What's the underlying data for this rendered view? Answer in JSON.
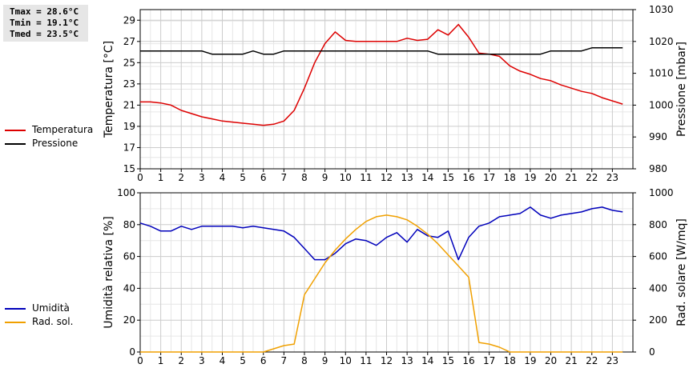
{
  "stats": {
    "tmax": "Tmax = 28.6°C",
    "tmin": "Tmin = 19.1°C",
    "tmed": "Tmed = 23.5°C"
  },
  "chart_data": [
    {
      "type": "line",
      "title": "",
      "xlabel": "",
      "ylabel": "Temperatura [°C]",
      "y2label": "Pressione [mbar]",
      "xlim": [
        0,
        24
      ],
      "x_ticks": [
        "0",
        "1",
        "2",
        "3",
        "4",
        "5",
        "6",
        "7",
        "8",
        "9",
        "10",
        "11",
        "12",
        "13",
        "14",
        "15",
        "16",
        "17",
        "18",
        "19",
        "20",
        "21",
        "22",
        "23"
      ],
      "ylim": [
        15,
        30
      ],
      "y_ticks": [
        "15",
        "17",
        "19",
        "21",
        "23",
        "25",
        "27",
        "29"
      ],
      "y2lim": [
        980,
        1030
      ],
      "y2_ticks": [
        "980",
        "990",
        "1000",
        "1010",
        "1020",
        "1030"
      ],
      "grid": true,
      "legend_position": "left",
      "series": [
        {
          "name": "Temperatura",
          "axis": "left",
          "color": "#dd0000",
          "x": [
            0,
            0.5,
            1,
            1.5,
            2,
            2.5,
            3,
            3.5,
            4,
            4.5,
            5,
            5.5,
            6,
            6.5,
            7,
            7.5,
            8,
            8.5,
            9,
            9.5,
            10,
            10.5,
            11,
            11.5,
            12,
            12.5,
            13,
            13.5,
            14,
            14.5,
            15,
            15.5,
            16,
            16.5,
            17,
            17.5,
            18,
            18.5,
            19,
            19.5,
            20,
            20.5,
            21,
            21.5,
            22,
            22.5,
            23,
            23.5
          ],
          "values": [
            21.3,
            21.3,
            21.2,
            21.0,
            20.5,
            20.2,
            19.9,
            19.7,
            19.5,
            19.4,
            19.3,
            19.2,
            19.1,
            19.2,
            19.5,
            20.5,
            22.6,
            25.0,
            26.8,
            27.9,
            27.1,
            27.0,
            27.0,
            27.0,
            27.0,
            27.0,
            27.3,
            27.1,
            27.2,
            28.1,
            27.6,
            28.6,
            27.4,
            25.9,
            25.8,
            25.6,
            24.7,
            24.2,
            23.9,
            23.5,
            23.3,
            22.9,
            22.6,
            22.3,
            22.1,
            21.7,
            21.4,
            21.1
          ]
        },
        {
          "name": "Pressione",
          "axis": "right",
          "color": "#000000",
          "x": [
            0,
            0.5,
            1,
            1.5,
            2,
            2.5,
            3,
            3.5,
            4,
            4.5,
            5,
            5.5,
            6,
            6.5,
            7,
            7.5,
            8,
            8.5,
            9,
            9.5,
            10,
            10.5,
            11,
            11.5,
            12,
            12.5,
            13,
            13.5,
            14,
            14.5,
            15,
            15.5,
            16,
            16.5,
            17,
            17.5,
            18,
            18.5,
            19,
            19.5,
            20,
            20.5,
            21,
            21.5,
            22,
            22.5,
            23,
            23.5
          ],
          "values": [
            1017,
            1017,
            1017,
            1017,
            1017,
            1017,
            1017,
            1016,
            1016,
            1016,
            1016,
            1017,
            1016,
            1016,
            1017,
            1017,
            1017,
            1017,
            1017,
            1017,
            1017,
            1017,
            1017,
            1017,
            1017,
            1017,
            1017,
            1017,
            1017,
            1016,
            1016,
            1016,
            1016,
            1016,
            1016,
            1016,
            1016,
            1016,
            1016,
            1016,
            1017,
            1017,
            1017,
            1017,
            1018,
            1018,
            1018,
            1018
          ]
        }
      ]
    },
    {
      "type": "line",
      "title": "",
      "xlabel": "",
      "ylabel": "Umidità relativa [%]",
      "y2label": "Rad. solare [W/mq]",
      "xlim": [
        0,
        24
      ],
      "x_ticks": [
        "0",
        "1",
        "2",
        "3",
        "4",
        "5",
        "6",
        "7",
        "8",
        "9",
        "10",
        "11",
        "12",
        "13",
        "14",
        "15",
        "16",
        "17",
        "18",
        "19",
        "20",
        "21",
        "22",
        "23"
      ],
      "ylim": [
        0,
        100
      ],
      "y_ticks": [
        "0",
        "20",
        "40",
        "60",
        "80",
        "100"
      ],
      "y2lim": [
        0,
        1000
      ],
      "y2_ticks": [
        "0",
        "200",
        "400",
        "600",
        "800",
        "1000"
      ],
      "grid": true,
      "legend_position": "left",
      "series": [
        {
          "name": "Umidità",
          "axis": "left",
          "color": "#0000bb",
          "x": [
            0,
            0.5,
            1,
            1.5,
            2,
            2.5,
            3,
            3.5,
            4,
            4.5,
            5,
            5.5,
            6,
            6.5,
            7,
            7.5,
            8,
            8.5,
            9,
            9.5,
            10,
            10.5,
            11,
            11.5,
            12,
            12.5,
            13,
            13.5,
            14,
            14.5,
            15,
            15.5,
            16,
            16.5,
            17,
            17.5,
            18,
            18.5,
            19,
            19.5,
            20,
            20.5,
            21,
            21.5,
            22,
            22.5,
            23,
            23.5
          ],
          "values": [
            81,
            79,
            76,
            76,
            79,
            77,
            79,
            79,
            79,
            79,
            78,
            79,
            78,
            77,
            76,
            72,
            65,
            58,
            58,
            62,
            68,
            71,
            70,
            67,
            72,
            75,
            69,
            77,
            73,
            72,
            76,
            58,
            72,
            79,
            81,
            85,
            86,
            87,
            91,
            86,
            84,
            86,
            87,
            88,
            90,
            91,
            89,
            88
          ]
        },
        {
          "name": "Rad. sol.",
          "axis": "right",
          "color": "#f0a000",
          "x": [
            0,
            0.5,
            1,
            1.5,
            2,
            2.5,
            3,
            3.5,
            4,
            4.5,
            5,
            5.5,
            6,
            6.5,
            7,
            7.5,
            8,
            8.5,
            9,
            9.5,
            10,
            10.5,
            11,
            11.5,
            12,
            12.5,
            13,
            13.5,
            14,
            14.5,
            15,
            15.5,
            16,
            16.5,
            17,
            17.5,
            18,
            18.5,
            19,
            19.5,
            20,
            20.5,
            21,
            21.5,
            22,
            22.5,
            23,
            23.5
          ],
          "values": [
            0,
            0,
            0,
            0,
            0,
            0,
            0,
            0,
            0,
            0,
            0,
            0,
            0,
            20,
            40,
            50,
            360,
            460,
            560,
            640,
            710,
            770,
            820,
            850,
            860,
            850,
            830,
            790,
            740,
            680,
            610,
            540,
            470,
            60,
            50,
            30,
            0,
            0,
            0,
            0,
            0,
            0,
            0,
            0,
            0,
            0,
            0,
            0
          ]
        }
      ]
    }
  ]
}
